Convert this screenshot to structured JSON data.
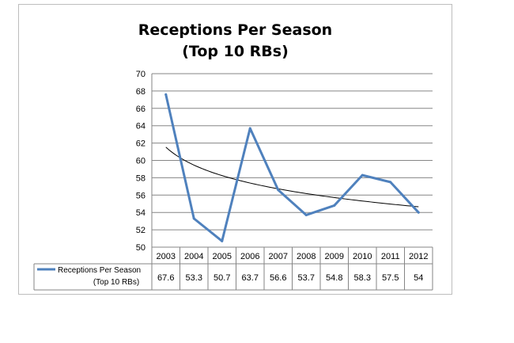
{
  "chart_data": {
    "type": "line",
    "title_line1": "Receptions Per Season",
    "title_line2": "(Top 10 RBs)",
    "categories": [
      "2003",
      "2004",
      "2005",
      "2006",
      "2007",
      "2008",
      "2009",
      "2010",
      "2011",
      "2012"
    ],
    "series": [
      {
        "name_line1": "Receptions Per Season",
        "name_line2": "(Top 10 RBs)",
        "values": [
          67.6,
          53.3,
          50.7,
          63.7,
          56.6,
          53.7,
          54.8,
          58.3,
          57.5,
          54
        ],
        "color": "#4f81bd"
      }
    ],
    "trendline": {
      "type": "logarithmic",
      "color": "#000000"
    },
    "ylim": [
      50,
      70
    ],
    "ytick_step": 2,
    "ytick_labels": [
      "50",
      "52",
      "54",
      "56",
      "58",
      "60",
      "62",
      "64",
      "66",
      "68",
      "70"
    ],
    "grid": true,
    "legend": "data-table-below"
  }
}
